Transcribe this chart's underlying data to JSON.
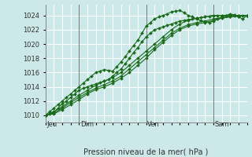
{
  "title": "",
  "xlabel": "Pression niveau de la mer( hPa )",
  "bg_color": "#cce8e8",
  "grid_color": "#ffffff",
  "line_color": "#1a6b1a",
  "marker_color": "#1a6b1a",
  "ylim": [
    1009.0,
    1025.5
  ],
  "yticks": [
    1010,
    1012,
    1014,
    1016,
    1018,
    1020,
    1022,
    1024
  ],
  "day_labels": [
    "Jeu",
    "Dim",
    "Ven",
    "Sam"
  ],
  "day_positions": [
    0,
    24,
    72,
    120
  ],
  "total_hours": 144,
  "series": [
    {
      "x": [
        0,
        3,
        6,
        9,
        12,
        15,
        18,
        21,
        24,
        27,
        30,
        33,
        36,
        39,
        42,
        45,
        48,
        51,
        54,
        57,
        60,
        63,
        66,
        69,
        72,
        75,
        78,
        81,
        84,
        87,
        90,
        93,
        96,
        99,
        102,
        105,
        108,
        111,
        114,
        117,
        120,
        123,
        126,
        129,
        132,
        135,
        138,
        141,
        144
      ],
      "y": [
        1010.0,
        1010.5,
        1011.0,
        1011.5,
        1012.0,
        1012.5,
        1013.0,
        1013.5,
        1014.0,
        1014.5,
        1015.0,
        1015.5,
        1016.0,
        1016.2,
        1016.4,
        1016.3,
        1016.2,
        1016.8,
        1017.5,
        1018.2,
        1019.0,
        1019.8,
        1020.5,
        1021.5,
        1022.5,
        1023.0,
        1023.5,
        1023.8,
        1024.0,
        1024.2,
        1024.5,
        1024.6,
        1024.7,
        1024.4,
        1024.0,
        1023.8,
        1023.5,
        1023.3,
        1023.1,
        1023.0,
        1023.2,
        1023.5,
        1023.8,
        1024.0,
        1024.2,
        1024.1,
        1023.8,
        1023.5,
        1024.0
      ]
    },
    {
      "x": [
        0,
        3,
        6,
        9,
        12,
        15,
        18,
        21,
        24,
        27,
        30,
        33,
        36,
        39,
        42,
        45,
        48,
        51,
        54,
        57,
        60,
        63,
        66,
        69,
        72,
        75,
        78,
        81,
        84,
        87,
        90,
        93,
        96,
        99,
        102,
        105,
        108,
        111,
        114,
        117,
        120,
        123,
        126,
        129,
        132,
        135,
        138,
        141,
        144
      ],
      "y": [
        1010.0,
        1010.2,
        1010.4,
        1011.0,
        1011.6,
        1012.0,
        1012.5,
        1013.0,
        1013.5,
        1013.8,
        1014.0,
        1014.2,
        1014.4,
        1014.6,
        1014.8,
        1015.0,
        1015.5,
        1016.0,
        1016.5,
        1017.2,
        1018.0,
        1018.8,
        1019.5,
        1020.3,
        1021.0,
        1021.5,
        1022.0,
        1022.2,
        1022.4,
        1022.6,
        1022.8,
        1023.0,
        1023.2,
        1023.3,
        1023.4,
        1023.5,
        1023.6,
        1023.7,
        1023.8,
        1023.9,
        1024.0,
        1024.0,
        1024.0,
        1024.0,
        1024.0,
        1024.0,
        1024.0,
        1024.0,
        1024.0
      ]
    },
    {
      "x": [
        0,
        6,
        12,
        18,
        24,
        30,
        36,
        42,
        48,
        54,
        60,
        66,
        72,
        78,
        84,
        90,
        96,
        102,
        108,
        114,
        120,
        126,
        132,
        138,
        144
      ],
      "y": [
        1010.0,
        1010.5,
        1011.2,
        1012.0,
        1012.8,
        1013.5,
        1014.2,
        1014.8,
        1015.3,
        1016.0,
        1017.0,
        1018.0,
        1019.0,
        1020.0,
        1021.0,
        1022.0,
        1022.8,
        1023.3,
        1023.6,
        1023.8,
        1024.0,
        1024.0,
        1024.0,
        1024.0,
        1024.0
      ]
    },
    {
      "x": [
        0,
        6,
        12,
        18,
        24,
        30,
        36,
        42,
        48,
        54,
        60,
        66,
        72,
        78,
        84,
        90,
        96,
        102,
        108,
        114,
        120,
        126,
        132,
        138,
        144
      ],
      "y": [
        1010.0,
        1010.3,
        1011.0,
        1011.8,
        1012.5,
        1013.2,
        1013.8,
        1014.3,
        1014.8,
        1015.5,
        1016.5,
        1017.5,
        1018.5,
        1019.5,
        1020.5,
        1021.5,
        1022.2,
        1022.7,
        1023.0,
        1023.2,
        1023.5,
        1023.7,
        1023.8,
        1023.9,
        1024.0
      ]
    },
    {
      "x": [
        0,
        6,
        12,
        18,
        24,
        30,
        36,
        42,
        48,
        54,
        60,
        66,
        72,
        78,
        84,
        90,
        96,
        102,
        108,
        114,
        120,
        126,
        132,
        138,
        144
      ],
      "y": [
        1010.0,
        1010.2,
        1010.8,
        1011.5,
        1012.2,
        1013.0,
        1013.6,
        1014.0,
        1014.5,
        1015.2,
        1016.0,
        1017.0,
        1018.0,
        1019.2,
        1020.2,
        1021.2,
        1022.0,
        1022.5,
        1022.8,
        1023.0,
        1023.3,
        1023.6,
        1023.8,
        1023.9,
        1024.0
      ]
    }
  ]
}
